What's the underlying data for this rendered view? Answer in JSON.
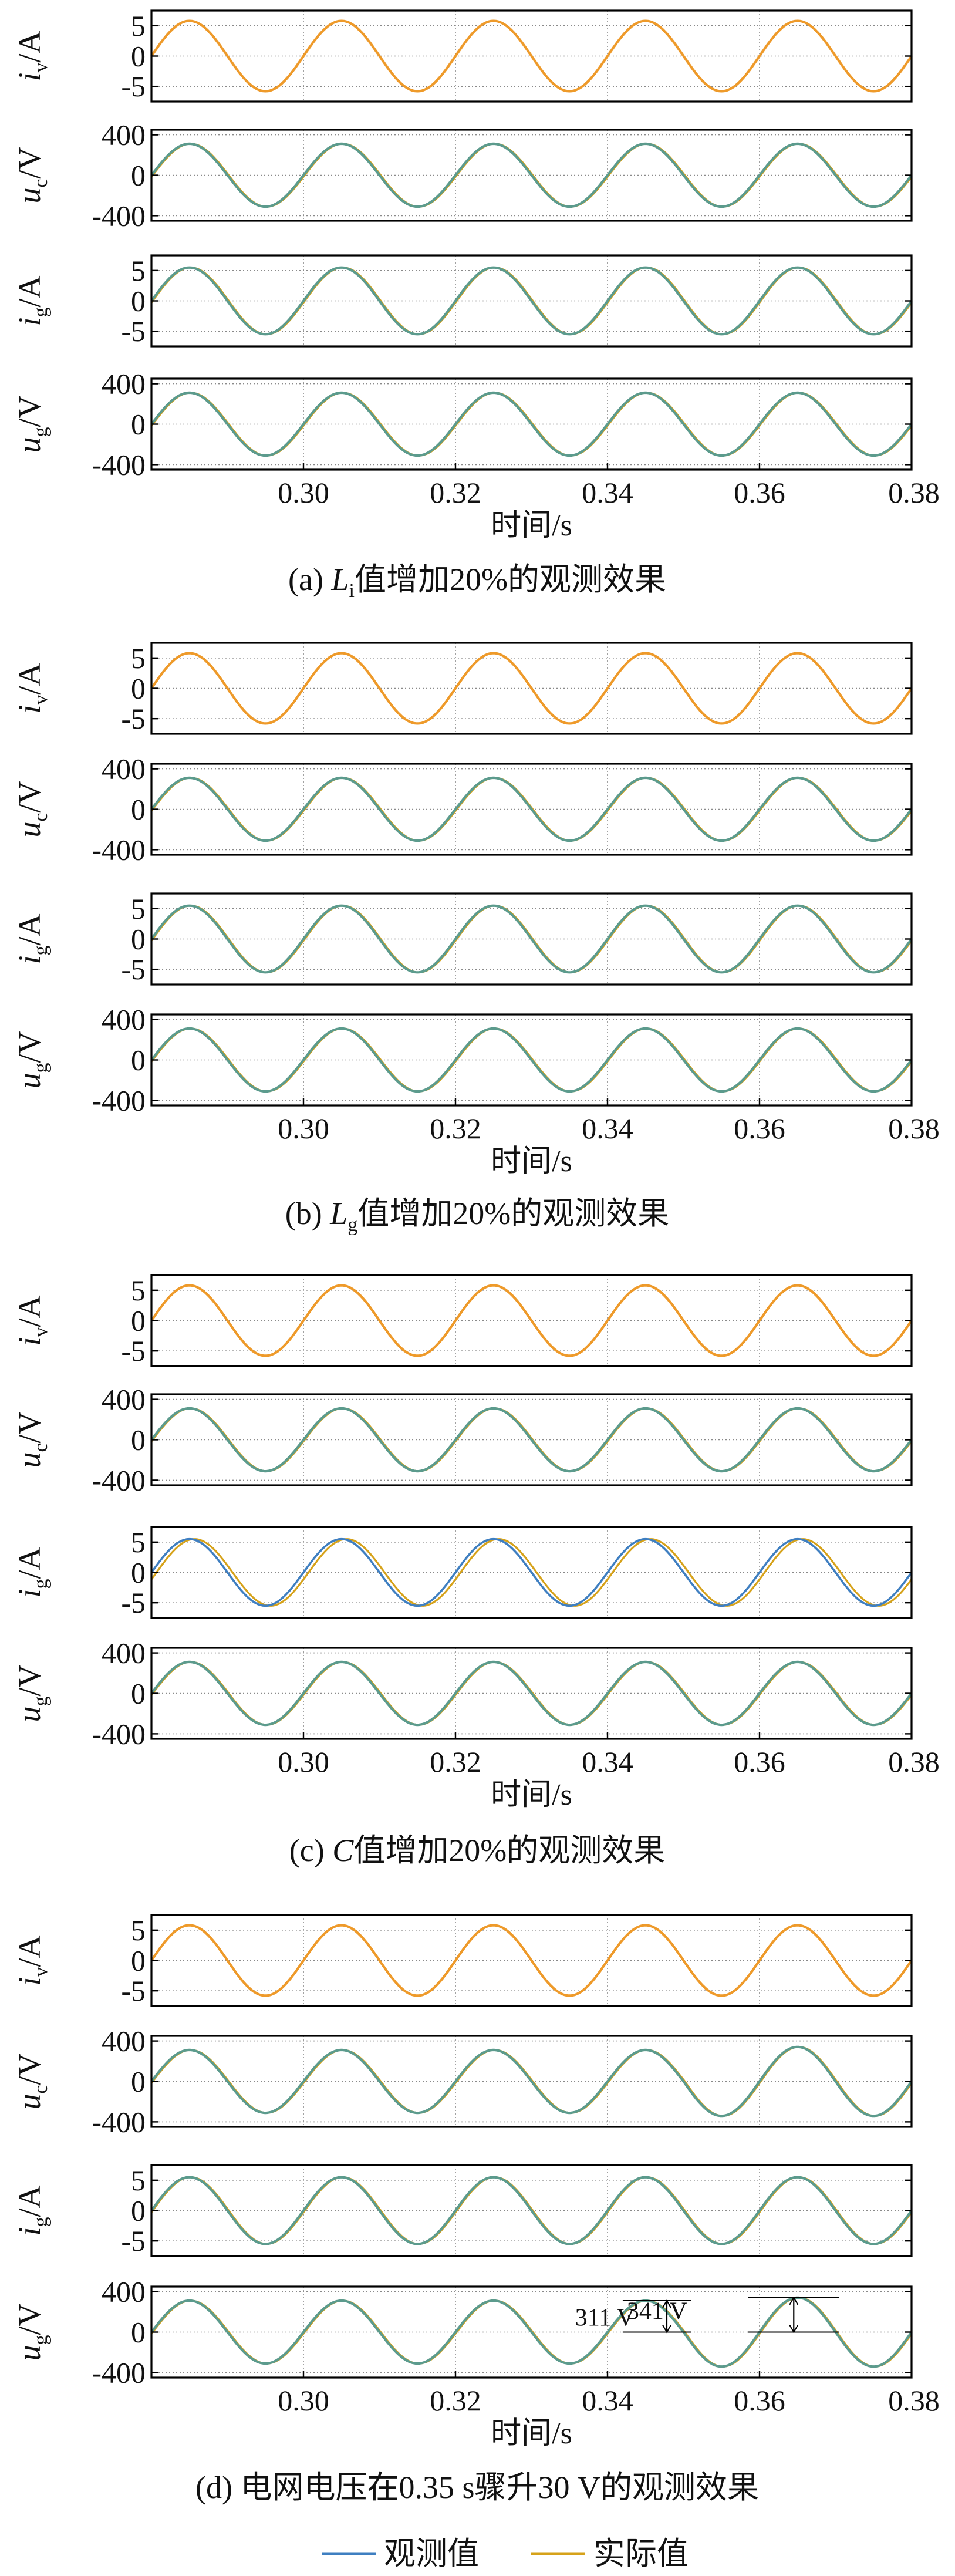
{
  "figure": {
    "xlabel": "时间/s",
    "legend": [
      {
        "label": "观测值",
        "color": "#3f7fc1"
      },
      {
        "label": "实际值",
        "color": "#d6a21a"
      }
    ]
  },
  "colors": {
    "current_orange": "#ee9a2a",
    "observed": "#3f7fc1",
    "actual": "#d6a21a",
    "green_overlay": "#5c9b8d",
    "grid": "#8a8a8a"
  },
  "captions": [
    {
      "prefix": "(a) ",
      "sym": "L",
      "sub": "i",
      "text": "值增加20%的观测效果"
    },
    {
      "prefix": "(b) ",
      "sym": "L",
      "sub": "g",
      "text": "值增加20%的观测效果"
    },
    {
      "prefix": "(c) ",
      "sym": "C",
      "sub": "",
      "text": "值增加20%的观测效果"
    },
    {
      "prefix": "(d) ",
      "sym": "",
      "sub": "",
      "text": "电网电压在0.35 s骤升30 V的观测效果"
    }
  ],
  "chart_data": [
    {
      "type": "line",
      "panel": "a",
      "signal": "i",
      "sub": "v",
      "unit": "A",
      "xlim": [
        0.28,
        0.38
      ],
      "ylim": [
        -7.5,
        7.5
      ],
      "yticks": [
        5,
        0,
        -5
      ],
      "xticks": [],
      "series": [
        {
          "amplitude": 5.8,
          "frequency_hz": 50,
          "phase_deg": 0,
          "visible": "orange"
        }
      ]
    },
    {
      "type": "line",
      "panel": "a",
      "signal": "u",
      "sub": "c",
      "unit": "V",
      "xlim": [
        0.28,
        0.38
      ],
      "ylim": [
        -450,
        450
      ],
      "yticks": [
        400,
        0,
        -400
      ],
      "xticks": [],
      "series": [
        {
          "amplitude": 311,
          "frequency_hz": 50,
          "phase_deg": 0,
          "visible": "green"
        }
      ]
    },
    {
      "type": "line",
      "panel": "a",
      "signal": "i",
      "sub": "g",
      "unit": "A",
      "xlim": [
        0.28,
        0.38
      ],
      "ylim": [
        -7.5,
        7.5
      ],
      "yticks": [
        5,
        0,
        -5
      ],
      "xticks": [],
      "series": [
        {
          "amplitude": 5.5,
          "frequency_hz": 50,
          "phase_deg": 0,
          "visible": "green"
        }
      ]
    },
    {
      "type": "line",
      "panel": "a",
      "signal": "u",
      "sub": "g",
      "unit": "V",
      "xlim": [
        0.28,
        0.38
      ],
      "ylim": [
        -450,
        450
      ],
      "yticks": [
        400,
        0,
        -400
      ],
      "xticks": [
        0.3,
        0.32,
        0.34,
        0.36,
        0.38
      ],
      "series": [
        {
          "amplitude": 311,
          "frequency_hz": 50,
          "phase_deg": 0,
          "visible": "green"
        }
      ]
    },
    {
      "type": "line",
      "panel": "b",
      "signal": "i",
      "sub": "v",
      "unit": "A",
      "xlim": [
        0.28,
        0.38
      ],
      "ylim": [
        -7.5,
        7.5
      ],
      "yticks": [
        5,
        0,
        -5
      ],
      "xticks": [],
      "series": [
        {
          "amplitude": 5.8,
          "frequency_hz": 50,
          "phase_deg": 0,
          "visible": "orange"
        }
      ]
    },
    {
      "type": "line",
      "panel": "b",
      "signal": "u",
      "sub": "c",
      "unit": "V",
      "xlim": [
        0.28,
        0.38
      ],
      "ylim": [
        -450,
        450
      ],
      "yticks": [
        400,
        0,
        -400
      ],
      "xticks": [],
      "series": [
        {
          "amplitude": 311,
          "frequency_hz": 50,
          "phase_deg": 0,
          "visible": "green"
        }
      ]
    },
    {
      "type": "line",
      "panel": "b",
      "signal": "i",
      "sub": "g",
      "unit": "A",
      "xlim": [
        0.28,
        0.38
      ],
      "ylim": [
        -7.5,
        7.5
      ],
      "yticks": [
        5,
        0,
        -5
      ],
      "xticks": [],
      "series": [
        {
          "amplitude": 5.5,
          "frequency_hz": 50,
          "phase_deg": 0,
          "visible": "green"
        }
      ]
    },
    {
      "type": "line",
      "panel": "b",
      "signal": "u",
      "sub": "g",
      "unit": "V",
      "xlim": [
        0.28,
        0.38
      ],
      "ylim": [
        -450,
        450
      ],
      "yticks": [
        400,
        0,
        -400
      ],
      "xticks": [
        0.3,
        0.32,
        0.34,
        0.36,
        0.38
      ],
      "series": [
        {
          "amplitude": 311,
          "frequency_hz": 50,
          "phase_deg": 0,
          "visible": "green"
        }
      ]
    },
    {
      "type": "line",
      "panel": "c",
      "signal": "i",
      "sub": "v",
      "unit": "A",
      "xlim": [
        0.28,
        0.38
      ],
      "ylim": [
        -7.5,
        7.5
      ],
      "yticks": [
        5,
        0,
        -5
      ],
      "xticks": [],
      "series": [
        {
          "amplitude": 5.8,
          "frequency_hz": 50,
          "phase_deg": 0,
          "visible": "orange"
        }
      ]
    },
    {
      "type": "line",
      "panel": "c",
      "signal": "u",
      "sub": "c",
      "unit": "V",
      "xlim": [
        0.28,
        0.38
      ],
      "ylim": [
        -450,
        450
      ],
      "yticks": [
        400,
        0,
        -400
      ],
      "xticks": [],
      "series": [
        {
          "amplitude": 311,
          "frequency_hz": 50,
          "phase_deg": 0,
          "visible": "green"
        }
      ]
    },
    {
      "type": "line",
      "panel": "c",
      "signal": "i",
      "sub": "g",
      "unit": "A",
      "xlim": [
        0.28,
        0.38
      ],
      "ylim": [
        -7.5,
        7.5
      ],
      "yticks": [
        5,
        0,
        -5
      ],
      "xticks": [],
      "series": [
        {
          "amplitude": 5.5,
          "frequency_hz": 50,
          "phase_deg": 0,
          "visible": "split"
        }
      ]
    },
    {
      "type": "line",
      "panel": "c",
      "signal": "u",
      "sub": "g",
      "unit": "V",
      "xlim": [
        0.28,
        0.38
      ],
      "ylim": [
        -450,
        450
      ],
      "yticks": [
        400,
        0,
        -400
      ],
      "xticks": [
        0.3,
        0.32,
        0.34,
        0.36,
        0.38
      ],
      "series": [
        {
          "amplitude": 311,
          "frequency_hz": 50,
          "phase_deg": 0,
          "visible": "green"
        }
      ]
    },
    {
      "type": "line",
      "panel": "d",
      "signal": "i",
      "sub": "v",
      "unit": "A",
      "xlim": [
        0.28,
        0.38
      ],
      "ylim": [
        -7.5,
        7.5
      ],
      "yticks": [
        5,
        0,
        -5
      ],
      "xticks": [],
      "series": [
        {
          "amplitude": 5.8,
          "frequency_hz": 50,
          "phase_deg": 0,
          "visible": "orange"
        }
      ]
    },
    {
      "type": "line",
      "panel": "d",
      "signal": "u",
      "sub": "c",
      "unit": "V",
      "xlim": [
        0.28,
        0.38
      ],
      "ylim": [
        -450,
        450
      ],
      "yticks": [
        400,
        0,
        -400
      ],
      "xticks": [],
      "series": [
        {
          "amplitude": 311,
          "amplitude_after": 341,
          "step_time": 0.35,
          "frequency_hz": 50,
          "phase_deg": 0,
          "visible": "green"
        }
      ]
    },
    {
      "type": "line",
      "panel": "d",
      "signal": "i",
      "sub": "g",
      "unit": "A",
      "xlim": [
        0.28,
        0.38
      ],
      "ylim": [
        -7.5,
        7.5
      ],
      "yticks": [
        5,
        0,
        -5
      ],
      "xticks": [],
      "series": [
        {
          "amplitude": 5.5,
          "frequency_hz": 50,
          "phase_deg": 0,
          "visible": "green"
        }
      ]
    },
    {
      "type": "line",
      "panel": "d",
      "signal": "u",
      "sub": "g",
      "unit": "V",
      "xlim": [
        0.28,
        0.38
      ],
      "ylim": [
        -450,
        450
      ],
      "yticks": [
        400,
        0,
        -400
      ],
      "xticks": [
        0.3,
        0.32,
        0.34,
        0.36,
        0.38
      ],
      "series": [
        {
          "amplitude": 311,
          "amplitude_after": 341,
          "step_time": 0.35,
          "frequency_hz": 50,
          "phase_deg": 0,
          "visible": "green"
        }
      ],
      "annotations": [
        "311 V",
        "341 V"
      ]
    }
  ]
}
